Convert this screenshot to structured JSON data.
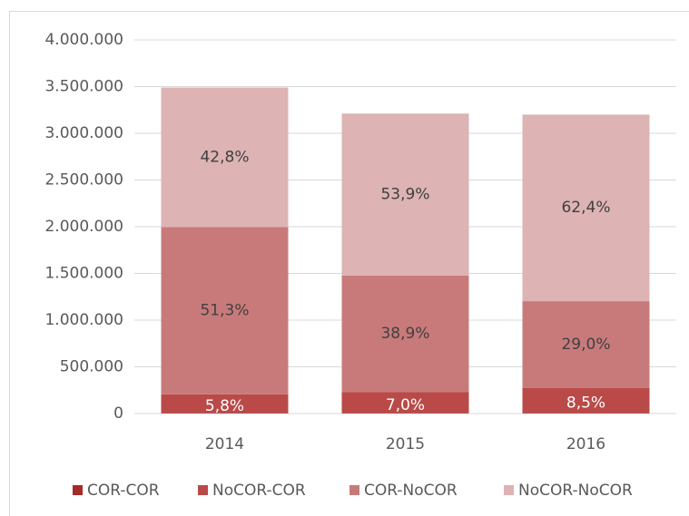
{
  "chart_data": {
    "type": "stacked_bar",
    "categories": [
      "2014",
      "2015",
      "2016"
    ],
    "series": [
      {
        "name": "COR-COR",
        "color": "#a52a2a",
        "values": [
          3000,
          3000,
          3000
        ]
      },
      {
        "name": "NoCOR-COR",
        "color": "#b94a48",
        "values": [
          203000,
          225000,
          272000
        ],
        "value_labels": [
          "5,8%",
          "7,0%",
          "8,5%"
        ]
      },
      {
        "name": "COR-NoCOR",
        "color": "#c87a7a",
        "values": [
          1790000,
          1250000,
          928000
        ],
        "value_labels": [
          "51,3%",
          "38,9%",
          "29,0%"
        ]
      },
      {
        "name": "NoCOR-NoCOR",
        "color": "#ddb3b3",
        "values": [
          1494000,
          1733000,
          1997000
        ],
        "value_labels": [
          "42,8%",
          "53,9%",
          "62,4%"
        ]
      }
    ],
    "ylim": [
      0,
      4000000
    ],
    "yticks": [
      0,
      {
        "value": 500000,
        "label": "500.000"
      },
      {
        "value": 1000000,
        "label": "1.000.000"
      },
      {
        "value": 1500000,
        "label": "1.500.000"
      },
      {
        "value": 2000000,
        "label": "2.000.000"
      },
      {
        "value": 2500000,
        "label": "2.500.000"
      },
      {
        "value": 3000000,
        "label": "3.000.000"
      },
      {
        "value": 3500000,
        "label": "3.500.000"
      },
      {
        "value": 4000000,
        "label": "4.000.000"
      }
    ],
    "grid": true,
    "legend": "bottom"
  }
}
